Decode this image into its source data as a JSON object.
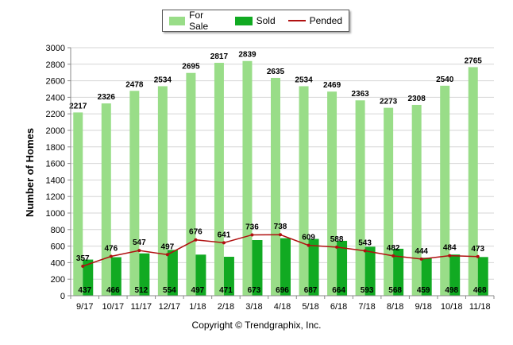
{
  "chart_data": {
    "type": "bar",
    "ylabel": "Number of Homes",
    "ylim": [
      0,
      3000
    ],
    "ytick_step": 200,
    "grid": true,
    "legend_position": "top-center",
    "categories": [
      "9/17",
      "10/17",
      "11/17",
      "12/17",
      "1/18",
      "2/18",
      "3/18",
      "4/18",
      "5/18",
      "6/18",
      "7/18",
      "8/18",
      "9/18",
      "10/18",
      "11/18"
    ],
    "series": [
      {
        "name": "For Sale",
        "type": "bar",
        "color": "#99dd88",
        "values": [
          2217,
          2326,
          2478,
          2534,
          2695,
          2817,
          2839,
          2635,
          2534,
          2469,
          2363,
          2273,
          2308,
          2540,
          2765
        ]
      },
      {
        "name": "Sold",
        "type": "bar",
        "color": "#11aa22",
        "values": [
          437,
          466,
          512,
          554,
          497,
          471,
          673,
          696,
          687,
          664,
          593,
          568,
          459,
          498,
          468
        ]
      },
      {
        "name": "Pended",
        "type": "line",
        "color": "#b01010",
        "values": [
          357,
          476,
          547,
          497,
          676,
          641,
          736,
          738,
          609,
          588,
          543,
          482,
          444,
          484,
          473
        ]
      }
    ]
  },
  "copyright": "Copyright © Trendgraphix, Inc."
}
